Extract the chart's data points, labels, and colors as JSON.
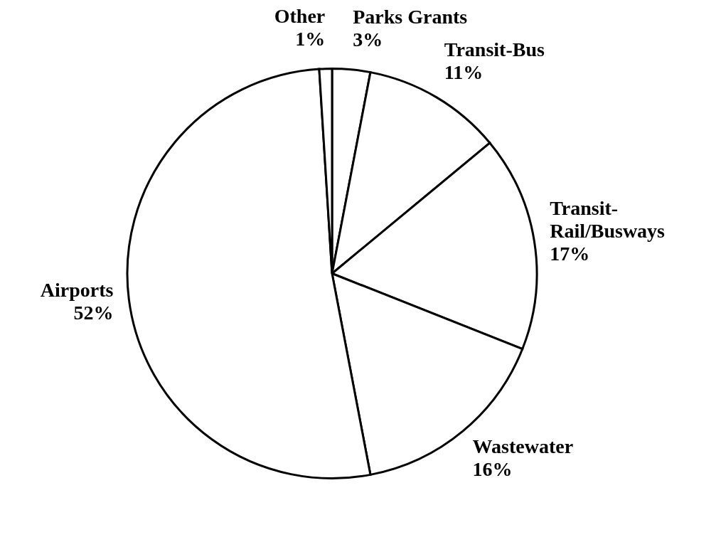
{
  "chart_data": {
    "type": "pie",
    "categories": [
      "Parks Grants",
      "Transit-Bus",
      "Transit-Rail/Busways",
      "Wastewater",
      "Airports",
      "Other"
    ],
    "values": [
      3,
      11,
      17,
      16,
      52,
      1
    ],
    "value_labels": [
      "3%",
      "11%",
      "17%",
      "16%",
      "52%",
      "1%"
    ],
    "colors": [
      "#ffffff",
      "#ffffff",
      "#ffffff",
      "#ffffff",
      "#ffffff",
      "#ffffff"
    ],
    "legend": false
  }
}
